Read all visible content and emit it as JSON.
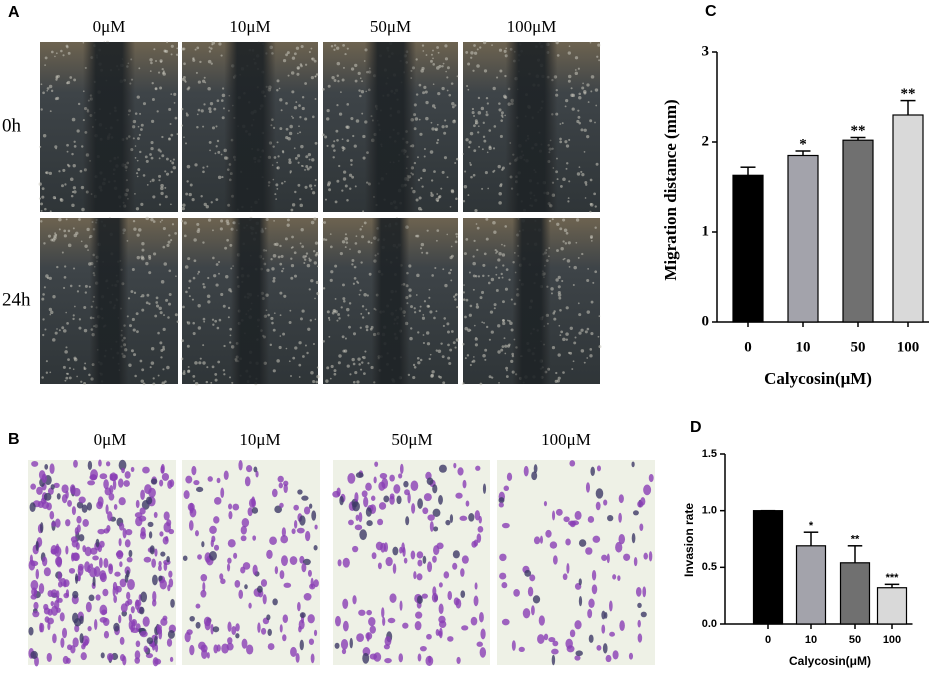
{
  "panels": [
    {
      "label": "A",
      "columns": [
        "0μM",
        "10μM",
        "50μM",
        "100μM"
      ],
      "rows": [
        "0h",
        "24h"
      ]
    },
    {
      "label": "B",
      "columns": [
        "0μM",
        "10μM",
        "50μM",
        "100μM"
      ]
    }
  ],
  "chart_data": [
    {
      "type": "bar",
      "label": "C",
      "x_label": "Calycosin(μM)",
      "y_label": "Migration distance (mm)",
      "categories": [
        "0",
        "10",
        "50",
        "100"
      ],
      "values": [
        1.63,
        1.85,
        2.02,
        2.3
      ],
      "errors": [
        0.09,
        0.05,
        0.03,
        0.16
      ],
      "annotations": [
        null,
        "*",
        "**",
        "**"
      ],
      "colors": [
        "#000000",
        "#a3a3ab",
        "#707070",
        "#d9d9d9"
      ],
      "ylim": [
        0,
        3
      ],
      "yticks": [
        0,
        1,
        2,
        3
      ]
    },
    {
      "type": "bar",
      "label": "D",
      "x_label": "Calycosin(μM)",
      "y_label": "Invasion rate",
      "categories": [
        "0",
        "10",
        "50",
        "100"
      ],
      "values": [
        1.0,
        0.69,
        0.54,
        0.32
      ],
      "errors": [
        0,
        0.12,
        0.15,
        0.03
      ],
      "annotations": [
        null,
        "*",
        "**",
        "***"
      ],
      "colors": [
        "#000000",
        "#a3a3ab",
        "#707070",
        "#d9d9d9"
      ],
      "ylim": [
        0,
        1.5
      ],
      "yticks": [
        {
          "value": 0,
          "label": "0.0"
        },
        0.5,
        {
          "value": 1,
          "label": "1.0"
        },
        1.5
      ]
    }
  ]
}
